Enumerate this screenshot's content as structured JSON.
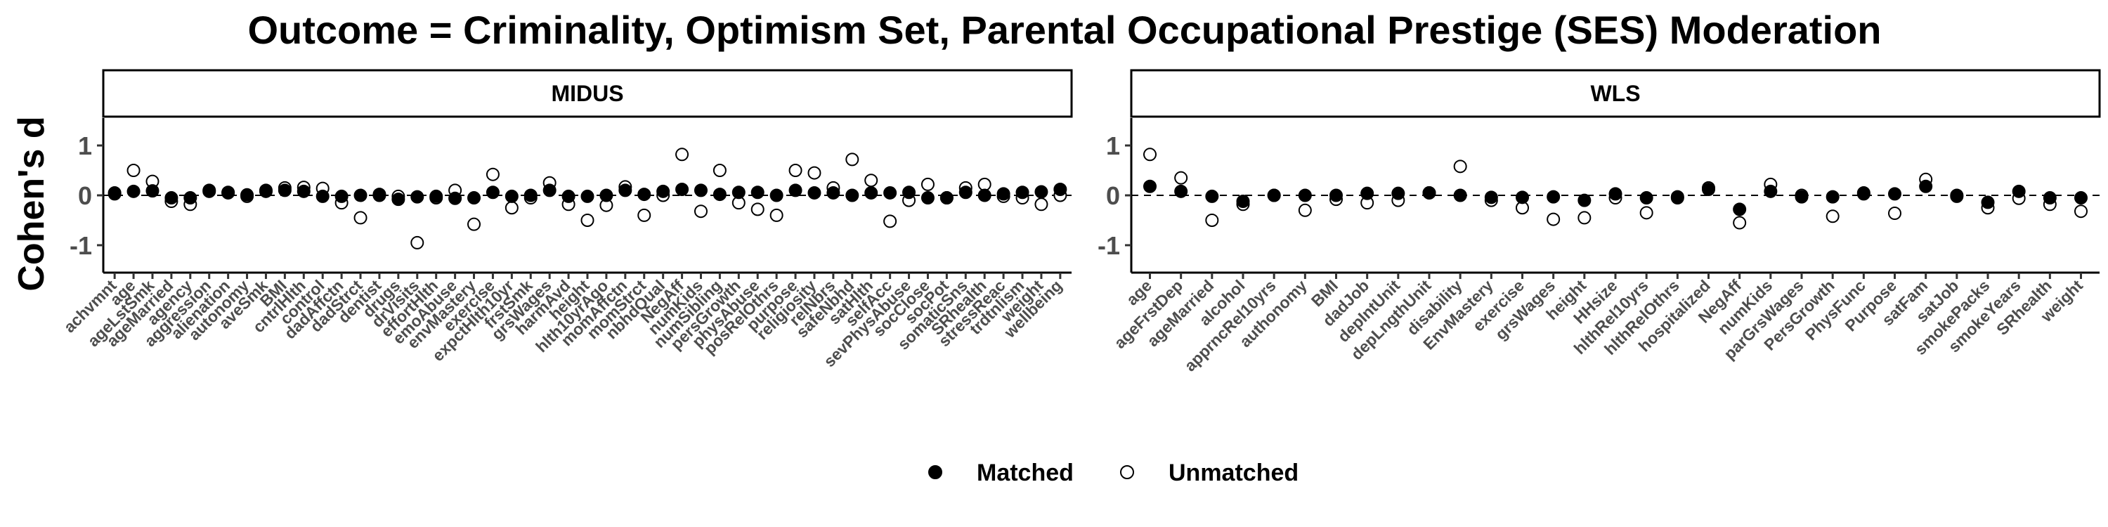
{
  "title": "Outcome = Criminality, Optimism Set, Parental Occupational Prestige (SES) Moderation",
  "colors": {
    "matched": "#000000",
    "unmatched": "#ffffff",
    "stroke": "#000000",
    "zero_line": "#000000",
    "tick_text": "#4d4d4d"
  },
  "chart_data": [
    {
      "type": "scatter",
      "panel": "MIDUS",
      "ylabel": "Cohen's d",
      "ylim": [
        -1.55,
        1.55
      ],
      "yticks": [
        -1,
        0,
        1
      ],
      "zero_line": "dashed",
      "categories": [
        "achvmnt",
        "age",
        "ageLstSmk",
        "ageMarried",
        "agency",
        "aggression",
        "alienation",
        "autonomy",
        "aveSmk",
        "BMI",
        "cntrlHlth",
        "control",
        "dadAffctn",
        "dadStrct",
        "dentist",
        "drugs",
        "drVisits",
        "effortHlth",
        "emoAbuse",
        "envMastery",
        "exercise",
        "expctHlth10yr",
        "frstSmk",
        "grsWages",
        "harmAvd",
        "height",
        "hlth10yrAgo",
        "momAffctn",
        "momStrct",
        "nbhdQual",
        "NegAff",
        "numKids",
        "numSibling",
        "persGrowth",
        "physAbuse",
        "posRelOthrs",
        "purpose",
        "religiosity",
        "relNbrs",
        "safeNbhd",
        "satHlth",
        "selfAcc",
        "sevPhysAbuse",
        "socClose",
        "socPot",
        "somaticSns",
        "SRhealth",
        "stressReac",
        "trdtnlism",
        "weight",
        "wellbeing"
      ],
      "series": [
        {
          "name": "Matched",
          "values": [
            0.05,
            0.08,
            0.09,
            -0.05,
            -0.05,
            0.1,
            0.06,
            0.01,
            0.1,
            0.1,
            0.08,
            -0.02,
            -0.02,
            0.0,
            0.02,
            -0.08,
            -0.03,
            -0.02,
            -0.06,
            -0.05,
            0.06,
            -0.02,
            0.0,
            0.1,
            -0.02,
            -0.02,
            0.0,
            0.1,
            0.02,
            0.08,
            0.12,
            0.1,
            0.02,
            0.06,
            0.06,
            0.0,
            0.1,
            0.05,
            0.05,
            0.0,
            0.05,
            0.05,
            0.06,
            -0.05,
            -0.05,
            0.06,
            0.0,
            0.03,
            0.06,
            0.07,
            0.12
          ]
        },
        {
          "name": "Unmatched",
          "values": [
            0.03,
            0.5,
            0.28,
            -0.12,
            -0.18,
            0.08,
            0.05,
            -0.02,
            0.08,
            0.15,
            0.16,
            0.14,
            -0.15,
            -0.45,
            0.0,
            -0.02,
            -0.95,
            -0.05,
            0.1,
            -0.58,
            0.42,
            -0.25,
            -0.05,
            0.25,
            -0.18,
            -0.5,
            -0.2,
            0.17,
            -0.4,
            0.0,
            0.82,
            -0.32,
            0.5,
            -0.15,
            -0.28,
            -0.4,
            0.5,
            0.45,
            0.15,
            0.72,
            0.3,
            -0.52,
            -0.1,
            0.22,
            -0.05,
            0.15,
            0.22,
            -0.02,
            -0.05,
            -0.18,
            0.0
          ]
        }
      ]
    },
    {
      "type": "scatter",
      "panel": "WLS",
      "ylim": [
        -1.55,
        1.55
      ],
      "yticks": [
        -1,
        0,
        1
      ],
      "zero_line": "dashed",
      "categories": [
        "age",
        "ageFrstDep",
        "ageMarried",
        "alcohol",
        "apprncRel10yrs",
        "authonomy",
        "BMI",
        "dadJob",
        "depIntUnit",
        "depLngthUnit",
        "disability",
        "EnvMastery",
        "exercise",
        "grsWages",
        "height",
        "HHsize",
        "hlthRel10yrs",
        "hlthRelOthrs",
        "hospitalized",
        "NegAff",
        "numKids",
        "parGrsWages",
        "PersGrowth",
        "PhysFunc",
        "Purpose",
        "satFam",
        "satJob",
        "smokePacks",
        "smokeYears",
        "SRhealth",
        "weight"
      ],
      "series": [
        {
          "name": "Matched",
          "values": [
            0.18,
            0.08,
            -0.02,
            -0.12,
            0.0,
            0.0,
            0.0,
            0.04,
            0.04,
            0.05,
            0.0,
            -0.04,
            -0.04,
            -0.03,
            -0.1,
            0.03,
            -0.05,
            -0.03,
            0.12,
            -0.28,
            0.08,
            -0.03,
            -0.03,
            0.03,
            0.03,
            0.18,
            -0.02,
            -0.14,
            0.08,
            -0.05,
            -0.05
          ]
        },
        {
          "name": "Unmatched",
          "values": [
            0.82,
            0.35,
            -0.5,
            -0.18,
            0.0,
            -0.3,
            -0.08,
            -0.15,
            -0.1,
            0.05,
            0.58,
            -0.1,
            -0.25,
            -0.48,
            -0.45,
            -0.05,
            -0.35,
            -0.05,
            0.15,
            -0.55,
            0.22,
            0.0,
            -0.42,
            0.05,
            -0.36,
            0.32,
            0.0,
            -0.25,
            -0.06,
            -0.18,
            -0.32
          ]
        }
      ]
    }
  ]
}
